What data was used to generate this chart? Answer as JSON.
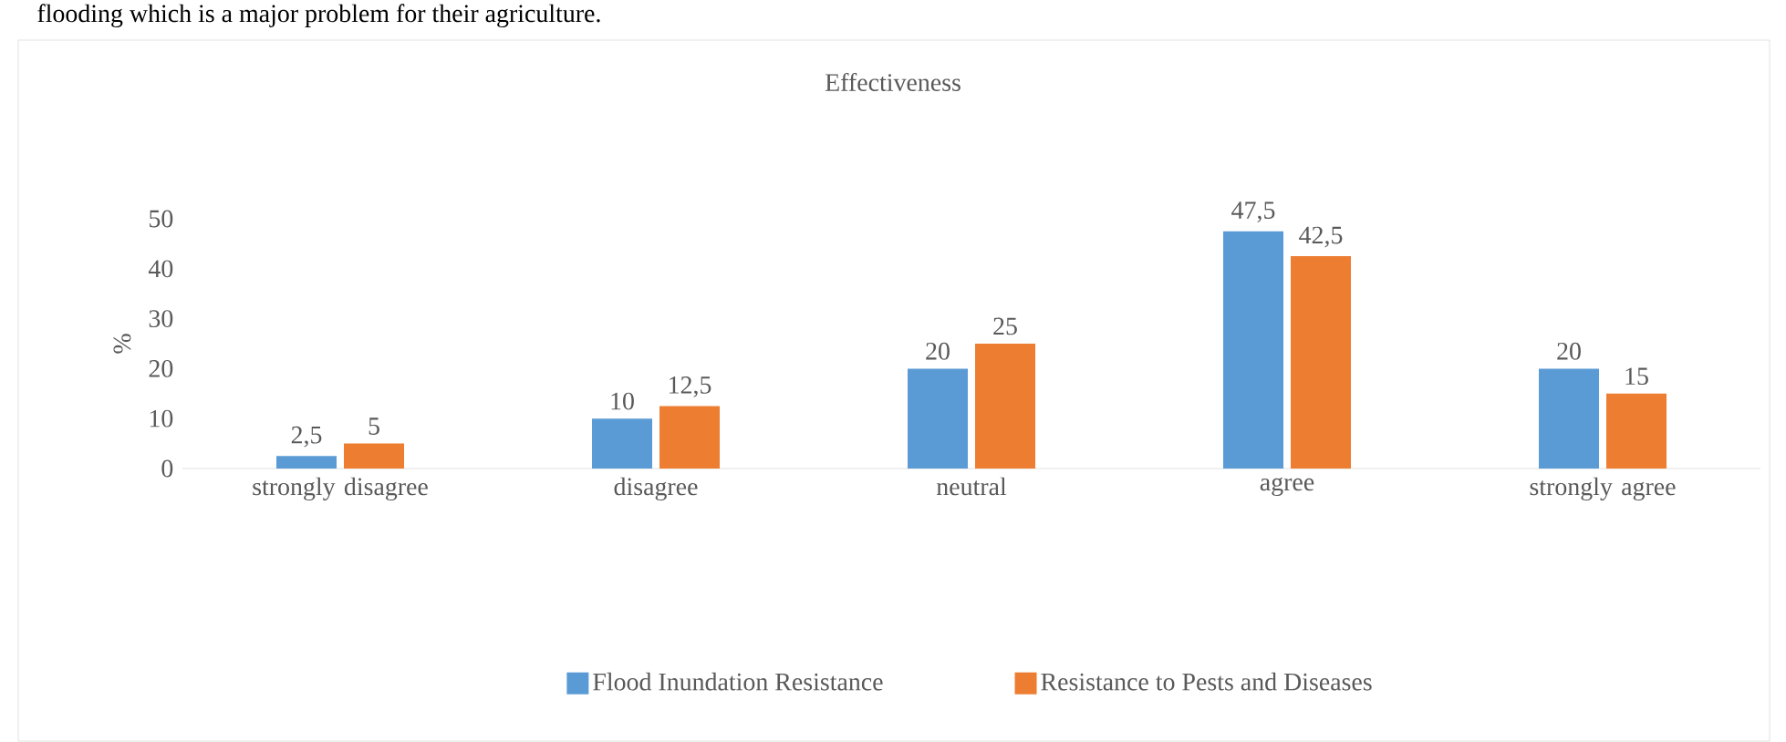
{
  "chart_data": {
    "type": "bar",
    "title": "Effectiveness",
    "ylabel": "%",
    "annotations": [
      "flooding which is a major problem for their agriculture."
    ],
    "categories": [
      "strongly disagree",
      "disagree",
      "neutral",
      "agree",
      "strongly agree"
    ],
    "series": [
      {
        "name": "Flood Inundation Resistance",
        "color": "#5b9bd5",
        "values": [
          2.5,
          10,
          20,
          47.5,
          20
        ],
        "value_labels": [
          "2,5",
          "10",
          "20",
          "47,5",
          "20"
        ]
      },
      {
        "name": "Resistance to Pests and Diseases",
        "color": "#ed7d31",
        "values": [
          5,
          12.5,
          25,
          42.5,
          15
        ],
        "value_labels": [
          "5",
          "12,5",
          "25",
          "42,5",
          "15"
        ]
      }
    ],
    "ylim": [
      0,
      50
    ],
    "yticks": [
      0,
      10,
      20,
      30,
      40,
      50
    ],
    "grid": false,
    "legend": "bottom"
  }
}
